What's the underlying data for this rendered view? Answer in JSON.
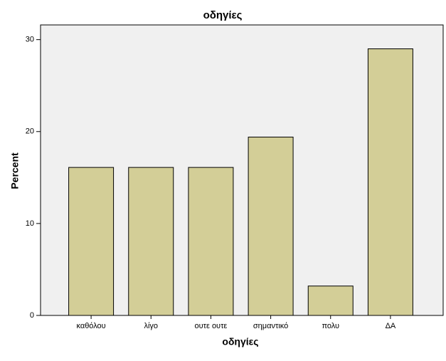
{
  "chart_data": {
    "type": "bar",
    "title": "οδηγίες",
    "x_label": "οδηγίες",
    "y_label": "Percent",
    "categories": [
      "καθόλου",
      "λίγο",
      "ουτε ουτε",
      "σημαντικό",
      "πολυ",
      "ΔΑ"
    ],
    "values": [
      16.1,
      16.1,
      16.1,
      19.4,
      3.2,
      29.0
    ],
    "color": "#d3ce97",
    "ylim": [
      0,
      31.6
    ],
    "yticks": [
      0,
      10,
      20,
      30
    ],
    "grid": false
  }
}
